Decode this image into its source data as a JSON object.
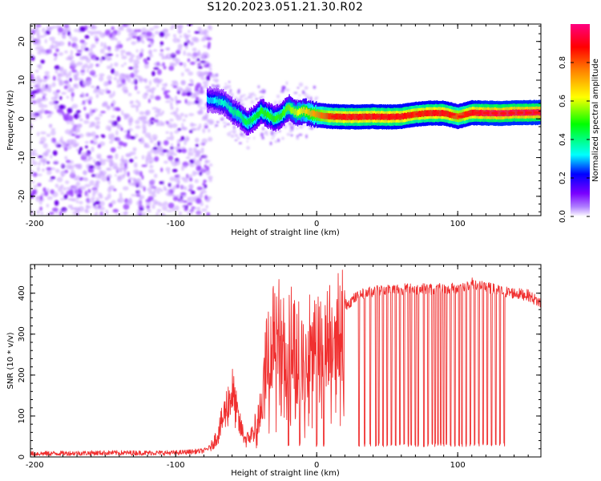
{
  "title": "S120.2023.051.21.30.R02",
  "chart_data": [
    {
      "type": "heatmap",
      "xlabel": "Height of straight line (km)",
      "ylabel": "Frequency (Hz)",
      "xlim": [
        -203,
        159
      ],
      "ylim": [
        -25,
        24.5
      ],
      "xticks": [
        -200,
        -100,
        0,
        100
      ],
      "yticks": [
        -20,
        -10,
        0,
        10,
        20
      ],
      "colorbar": {
        "label": "Normalized spectral amplitude",
        "range": [
          0,
          1
        ],
        "ticks": [
          0.0,
          0.2,
          0.4,
          0.6,
          0.8
        ],
        "colormap": [
          "#ffffff",
          "#7a00ff",
          "#0000ff",
          "#00ffff",
          "#00ff00",
          "#ffff00",
          "#ff8000",
          "#ff0000",
          "#ff0080"
        ]
      },
      "noise_region": {
        "x": [
          -203,
          -75
        ],
        "y": [
          -25,
          24.5
        ],
        "level": 0.15
      },
      "ridge": {
        "x": [
          -75,
          -70,
          -65,
          -60,
          -55,
          -50,
          -45,
          -40,
          -35,
          -30,
          -25,
          -20,
          -15,
          -10,
          -5,
          0,
          10,
          20,
          30,
          40,
          50,
          60,
          70,
          80,
          90,
          100,
          110,
          120,
          130,
          140,
          150,
          159
        ],
        "freq": [
          5,
          4.5,
          4,
          2,
          1,
          -1,
          0,
          2,
          1,
          0,
          1,
          3,
          1.5,
          2,
          1.5,
          1,
          0.6,
          0.5,
          0.5,
          0.6,
          0.5,
          0.6,
          1.2,
          1.5,
          1.5,
          0.6,
          1.6,
          1.5,
          1.4,
          1.6,
          1.6,
          1.7
        ],
        "amplitude": [
          0.3,
          0.35,
          0.35,
          0.4,
          0.4,
          0.45,
          0.45,
          0.5,
          0.5,
          0.5,
          0.5,
          0.55,
          0.6,
          0.65,
          0.7,
          0.75,
          0.85,
          0.9,
          0.9,
          0.9,
          0.9,
          0.9,
          0.85,
          0.9,
          0.9,
          0.8,
          0.9,
          0.95,
          0.95,
          0.95,
          0.95,
          0.95
        ]
      }
    },
    {
      "type": "line",
      "xlabel": "Height of straight line (km)",
      "ylabel": "SNR (10 * v/v)",
      "xlim": [
        -203,
        159
      ],
      "ylim": [
        0,
        470
      ],
      "xticks": [
        -200,
        -100,
        0,
        100
      ],
      "yticks": [
        0,
        100,
        200,
        300,
        400
      ],
      "color": "#f03030",
      "envelope": {
        "x": [
          -203,
          -150,
          -100,
          -80,
          -75,
          -70,
          -65,
          -60,
          -55,
          -50,
          -45,
          -40,
          -35,
          -30,
          -25,
          -20,
          -15,
          -10,
          -5,
          0,
          5,
          10,
          15,
          20,
          30,
          40,
          50,
          60,
          70,
          80,
          90,
          100,
          110,
          120,
          130,
          140,
          150,
          159
        ],
        "y": [
          8,
          10,
          10,
          15,
          25,
          55,
          110,
          160,
          80,
          40,
          60,
          120,
          260,
          300,
          280,
          260,
          270,
          230,
          240,
          270,
          290,
          320,
          350,
          370,
          395,
          405,
          410,
          410,
          410,
          410,
          410,
          412,
          425,
          415,
          405,
          400,
          395,
          375
        ]
      },
      "dropouts_x": [
        -20,
        -12,
        0,
        5,
        30,
        34,
        38,
        42,
        44,
        47,
        50,
        53,
        56,
        59,
        62,
        65,
        67,
        70,
        72,
        76,
        79,
        82,
        84,
        86,
        88,
        90,
        92,
        95,
        98,
        101,
        103,
        106,
        109,
        112,
        115,
        118,
        121,
        124,
        127,
        130,
        133
      ]
    }
  ]
}
